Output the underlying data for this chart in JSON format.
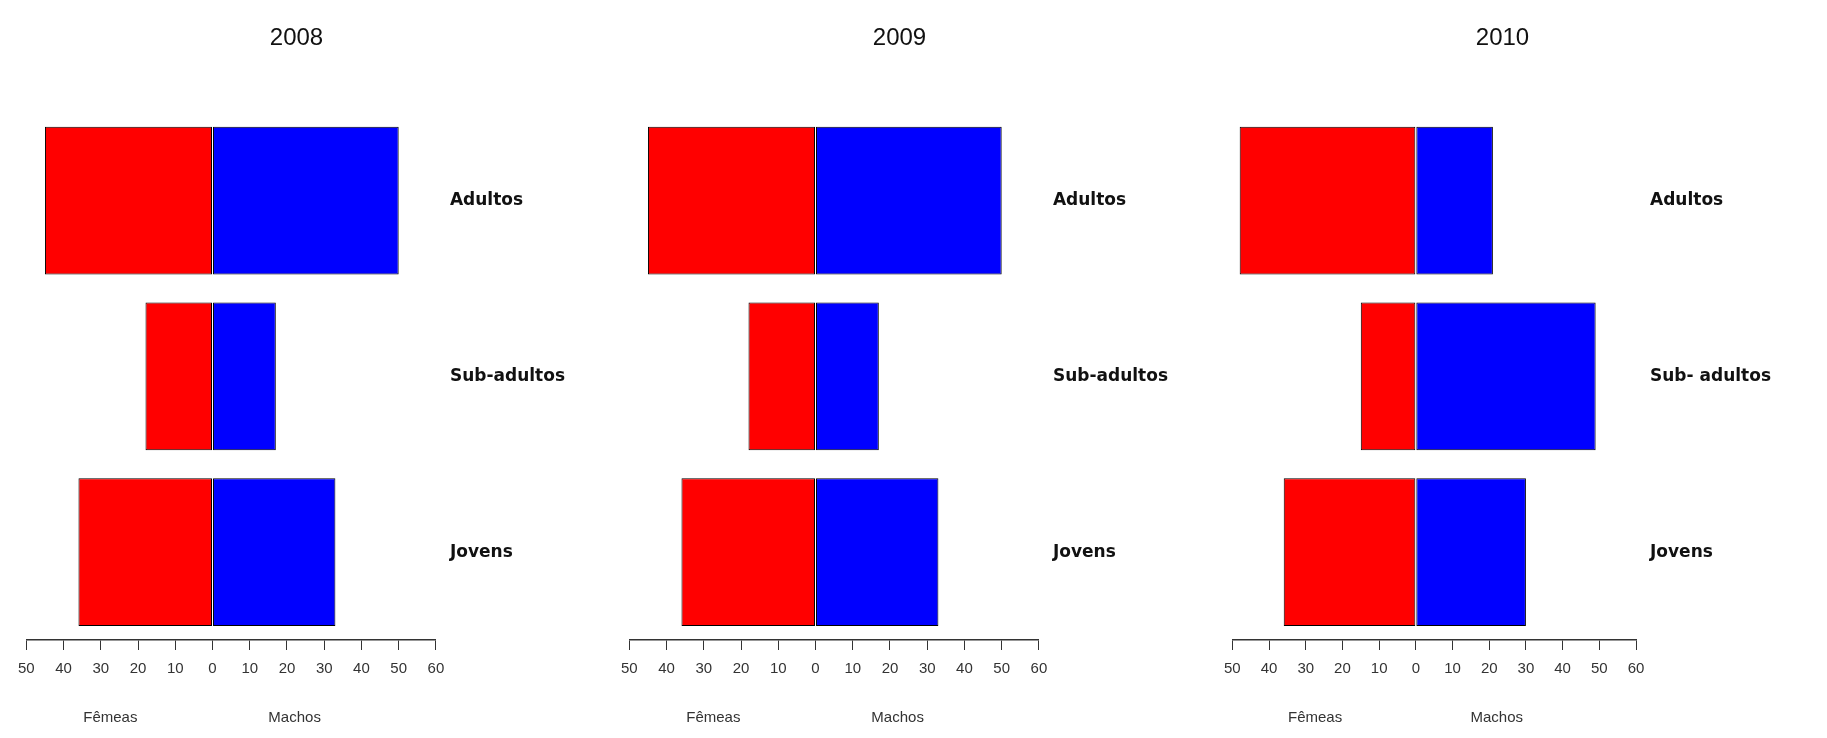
{
  "chart_data": [
    {
      "type": "bar",
      "title": "2008",
      "orientation": "horizontal",
      "stacked": true,
      "categories": [
        "Adultos",
        "Sub-adultos",
        "Jovens"
      ],
      "series": [
        {
          "color": "#ff0000",
          "values": [
            -45,
            -18,
            -36
          ]
        },
        {
          "color": "#0000ff",
          "values": [
            50,
            17,
            33
          ]
        }
      ],
      "xlim": [
        -50,
        60
      ],
      "xticks": [
        {
          "value": -50,
          "label": "50"
        },
        {
          "value": -40,
          "label": "40"
        },
        {
          "value": -30,
          "label": "30"
        },
        {
          "value": -20,
          "label": "20"
        },
        {
          "value": -10,
          "label": "10"
        },
        0,
        10,
        20,
        30,
        40,
        50,
        60
      ],
      "annotations": [
        "Fêmeas",
        "Machos"
      ]
    },
    {
      "type": "bar",
      "title": "2009",
      "orientation": "horizontal",
      "stacked": true,
      "categories": [
        "Adultos",
        "Sub-adultos",
        "Jovens"
      ],
      "series": [
        {
          "color": "#ff0000",
          "values": [
            -45,
            -18,
            -36
          ]
        },
        {
          "color": "#0000ff",
          "values": [
            50,
            17,
            33
          ]
        }
      ],
      "xlim": [
        -50,
        60
      ],
      "xticks": [
        {
          "value": -50,
          "label": "50"
        },
        {
          "value": -40,
          "label": "40"
        },
        {
          "value": -30,
          "label": "30"
        },
        {
          "value": -20,
          "label": "20"
        },
        {
          "value": -10,
          "label": "10"
        },
        0,
        10,
        20,
        30,
        40,
        50,
        60
      ],
      "annotations": [
        "Fêmeas",
        "Machos"
      ]
    },
    {
      "type": "bar",
      "title": "2010",
      "orientation": "horizontal",
      "stacked": true,
      "categories": [
        "Adultos",
        "Sub- adultos",
        "Jovens"
      ],
      "series": [
        {
          "color": "#ff0000",
          "values": [
            -48,
            -15,
            -36
          ]
        },
        {
          "color": "#0000ff",
          "values": [
            21,
            49,
            30
          ]
        }
      ],
      "xlim": [
        -50,
        60
      ],
      "xticks": [
        {
          "value": -50,
          "label": "50"
        },
        {
          "value": -40,
          "label": "40"
        },
        {
          "value": -30,
          "label": "30"
        },
        {
          "value": -20,
          "label": "20"
        },
        {
          "value": -10,
          "label": "10"
        },
        0,
        10,
        20,
        30,
        40,
        50,
        60
      ],
      "annotations": [
        "Fêmeas",
        "Machos"
      ]
    }
  ]
}
